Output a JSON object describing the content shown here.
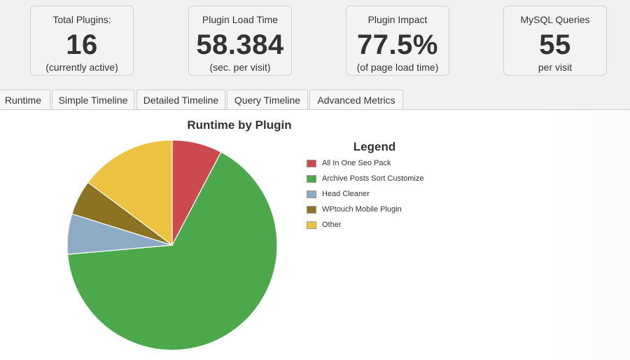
{
  "stats": [
    {
      "label": "Total Plugins:",
      "value": "16",
      "sub": "(currently active)"
    },
    {
      "label": "Plugin Load Time",
      "value": "58.384",
      "sub": "(sec. per visit)"
    },
    {
      "label": "Plugin Impact",
      "value": "77.5%",
      "sub": "(of page load time)"
    },
    {
      "label": "MySQL Queries",
      "value": "55",
      "sub": "per visit"
    }
  ],
  "tabs": [
    {
      "label": "Runtime Breakdown"
    },
    {
      "label": "Simple Timeline"
    },
    {
      "label": "Detailed Timeline"
    },
    {
      "label": "Query Timeline"
    },
    {
      "label": "Advanced Metrics"
    }
  ],
  "chart_data": {
    "type": "pie",
    "title": "Runtime by Plugin",
    "legend_title": "Legend",
    "legend_placement": "right",
    "slices": [
      {
        "name": "All In One Seo Pack",
        "value": 7.7,
        "color": "#cc4a4e"
      },
      {
        "name": "Archive Posts Sort Customize",
        "value": 65.9,
        "color": "#4ba84b"
      },
      {
        "name": "Head Cleaner",
        "value": 6.2,
        "color": "#8eabc5"
      },
      {
        "name": "WPtouch Mobile Plugin",
        "value": 5.4,
        "color": "#8c7223"
      },
      {
        "name": "Other",
        "value": 14.8,
        "color": "#ecc240"
      }
    ]
  }
}
